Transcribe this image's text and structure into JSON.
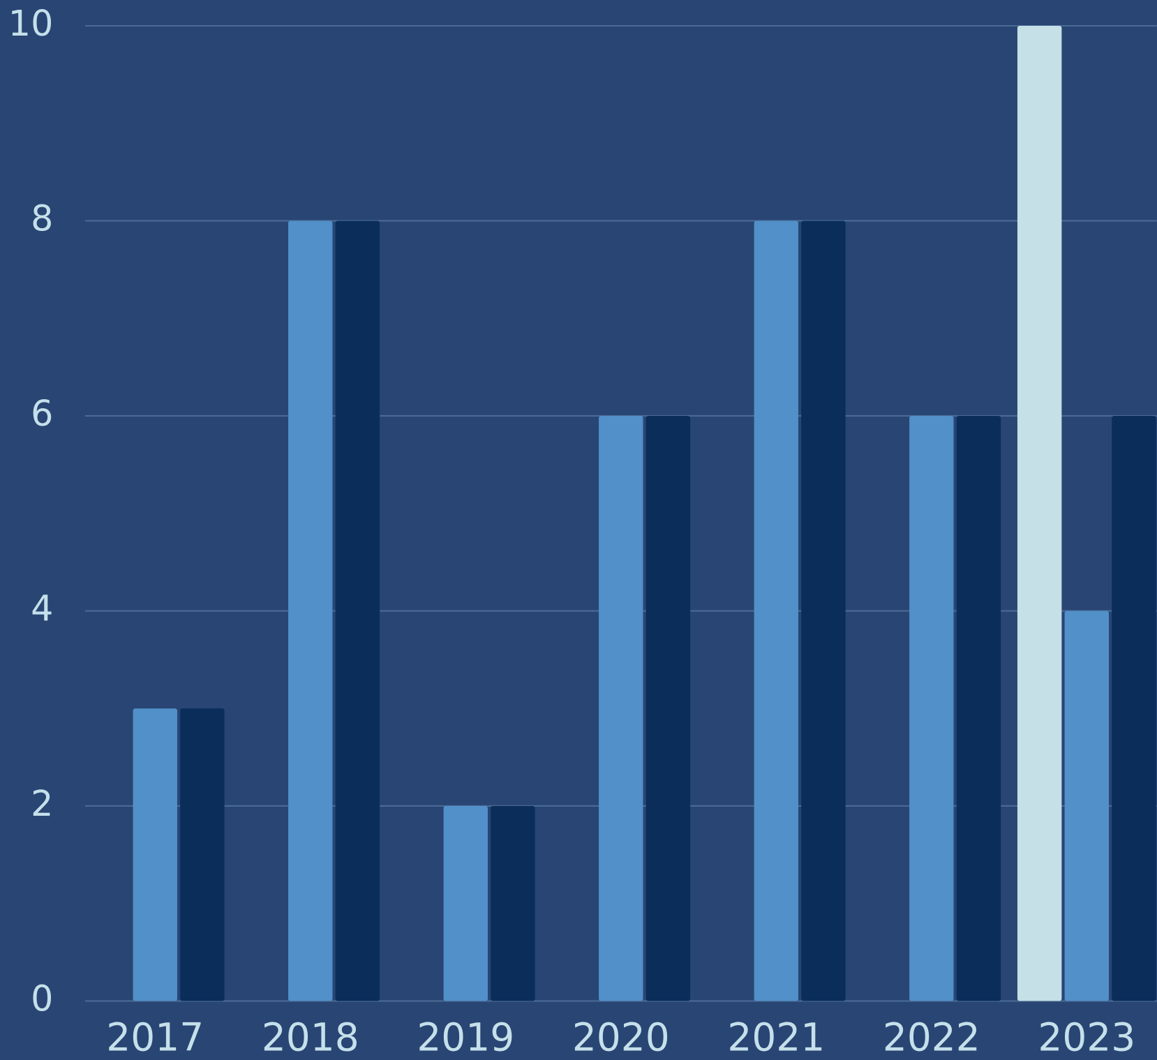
{
  "chart_data": {
    "type": "bar",
    "categories": [
      "2017",
      "2018",
      "2019",
      "2020",
      "2021",
      "2022",
      "2023"
    ],
    "series": [
      {
        "color": "#c5e0e6",
        "values": [
          null,
          null,
          null,
          null,
          null,
          null,
          10
        ]
      },
      {
        "color": "#5190c8",
        "values": [
          3,
          8,
          2,
          6,
          8,
          6,
          4
        ]
      },
      {
        "color": "#0a2d5a",
        "values": [
          3,
          8,
          2,
          6,
          8,
          6,
          6
        ]
      }
    ],
    "ylim": [
      0,
      10
    ],
    "yticks": [
      0,
      2,
      4,
      6,
      8,
      10
    ],
    "grid": true
  }
}
